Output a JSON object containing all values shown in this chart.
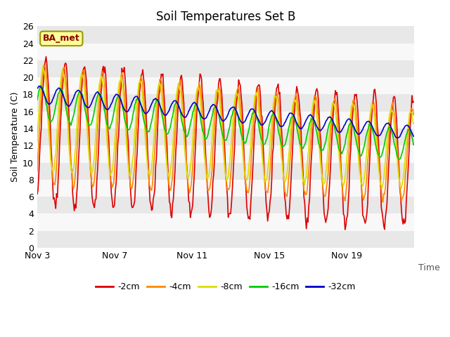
{
  "title": "Soil Temperatures Set B",
  "xlabel": "Time",
  "ylabel": "Soil Temperature (C)",
  "ylim": [
    0,
    26
  ],
  "yticks": [
    0,
    2,
    4,
    6,
    8,
    10,
    12,
    14,
    16,
    18,
    20,
    22,
    24,
    26
  ],
  "xtick_labels": [
    "Nov 3",
    "Nov 7",
    "Nov 11",
    "Nov 15",
    "Nov 19"
  ],
  "xtick_positions": [
    0,
    4,
    8,
    12,
    16
  ],
  "xlim": [
    0,
    19.5
  ],
  "legend_labels": [
    "-2cm",
    "-4cm",
    "-8cm",
    "-16cm",
    "-32cm"
  ],
  "line_colors": [
    "#dd0000",
    "#ff8800",
    "#dddd00",
    "#00cc00",
    "#0000cc"
  ],
  "bg_color": "#ffffff",
  "plot_bg_color": "#e8e8e8",
  "band_colors": [
    "#e8e8e8",
    "#f8f8f8"
  ],
  "label_box_text": "BA_met",
  "label_box_facecolor": "#ffff99",
  "label_box_edgecolor": "#999900"
}
